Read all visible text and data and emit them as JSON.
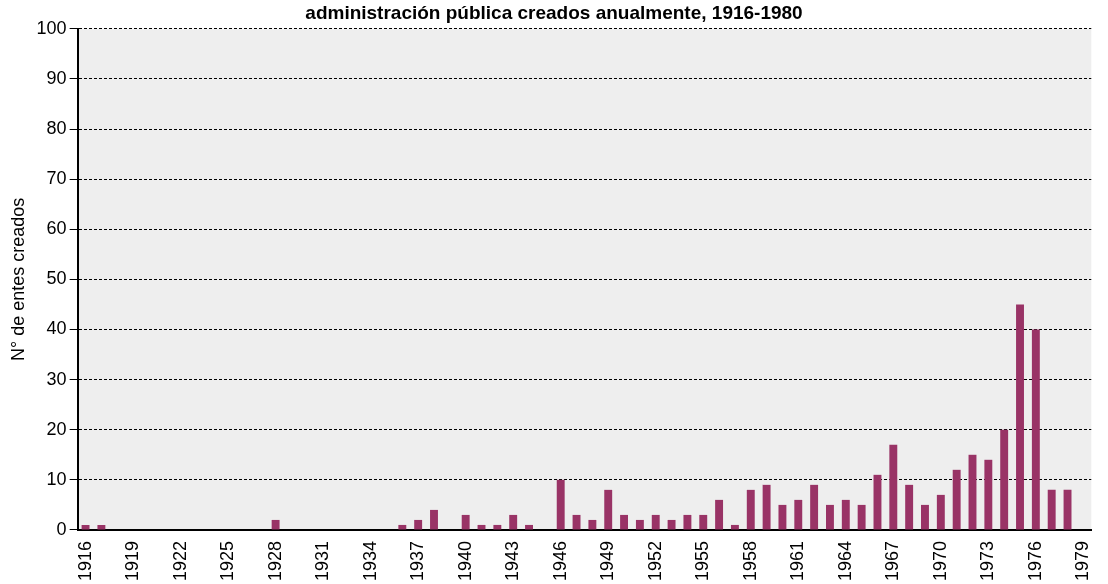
{
  "chart_data": {
    "type": "bar",
    "title": "administración pública creados anualmente, 1916-1980",
    "ylabel": "N° de entes creados",
    "categories": [
      "1916",
      null,
      null,
      "1919",
      null,
      null,
      "1922",
      null,
      null,
      "1925",
      null,
      null,
      "1928",
      null,
      null,
      "1931",
      null,
      null,
      "1934",
      null,
      null,
      "1937",
      null,
      null,
      "1940",
      null,
      null,
      "1943",
      null,
      null,
      "1946",
      null,
      null,
      "1949",
      null,
      null,
      "1952",
      null,
      null,
      "1955",
      null,
      null,
      "1958",
      null,
      null,
      "1961",
      null,
      null,
      "1964",
      null,
      null,
      "1967",
      null,
      null,
      "1970",
      null,
      null,
      "1973",
      null,
      null,
      "1976",
      null,
      null,
      "1979"
    ],
    "values": [
      1,
      1,
      0,
      0,
      0,
      0,
      0,
      0,
      0,
      0,
      0,
      0,
      2,
      0,
      0,
      0,
      0,
      0,
      0,
      0,
      1,
      2,
      4,
      0,
      3,
      1,
      1,
      3,
      1,
      0,
      10,
      3,
      2,
      8,
      3,
      2,
      3,
      2,
      3,
      3,
      6,
      1,
      8,
      9,
      5,
      6,
      9,
      5,
      6,
      5,
      11,
      17,
      9,
      5,
      7,
      12,
      15,
      14,
      20,
      45,
      40,
      8,
      8,
      0
    ],
    "color": "#993366",
    "ylim": [
      0,
      100
    ],
    "yticks": [
      0,
      10,
      20,
      30,
      40,
      50,
      60,
      70,
      80,
      90,
      100
    ],
    "grid": "y",
    "legend": false
  }
}
